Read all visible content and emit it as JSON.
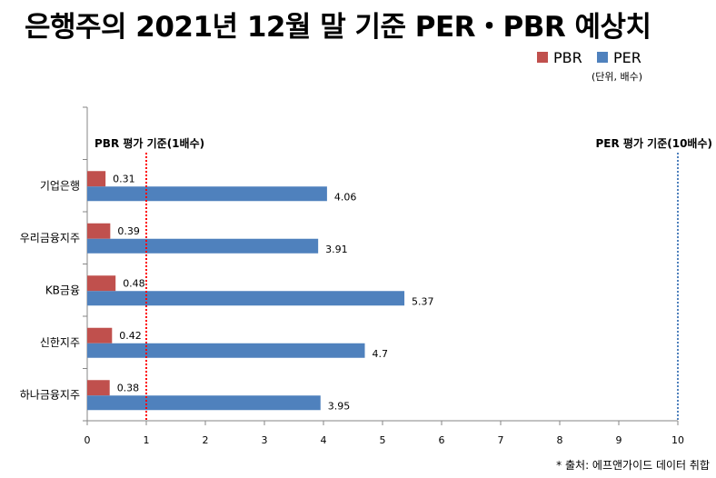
{
  "chart_data": {
    "type": "bar",
    "orientation": "horizontal",
    "title": "은행주의 2021년 12월 말 기준 PER・PBR 예상치",
    "unit_note": "(단위, 배수)",
    "source_note": "* 출처: 에프앤가이드 데이터 취합",
    "categories": [
      "기업은행",
      "우리금융지주",
      "KB금융",
      "신한지주",
      "하나금융지주"
    ],
    "series": [
      {
        "name": "PBR",
        "color": "#C0504D",
        "values": [
          0.31,
          0.39,
          0.48,
          0.42,
          0.38
        ]
      },
      {
        "name": "PER",
        "color": "#4F81BD",
        "values": [
          4.06,
          3.91,
          5.37,
          4.7,
          3.95
        ]
      }
    ],
    "value_labels": {
      "PBR": [
        "0.31",
        "0.39",
        "0.48",
        "0.42",
        "0.38"
      ],
      "PER": [
        "4.06",
        "3.91",
        "5.37",
        "4.7",
        "3.95"
      ]
    },
    "xlim": [
      0,
      10
    ],
    "xticks": [
      "0",
      "1",
      "2",
      "3",
      "4",
      "5",
      "6",
      "7",
      "8",
      "9",
      "10"
    ],
    "reference_lines": [
      {
        "value": 1,
        "label": "PBR 평가 기준(1배수)",
        "color": "#FF0000"
      },
      {
        "value": 10,
        "label": "PER 평가 기준(10배수)",
        "color": "#4F81BD"
      }
    ],
    "legend": "top-right",
    "grid": false
  }
}
